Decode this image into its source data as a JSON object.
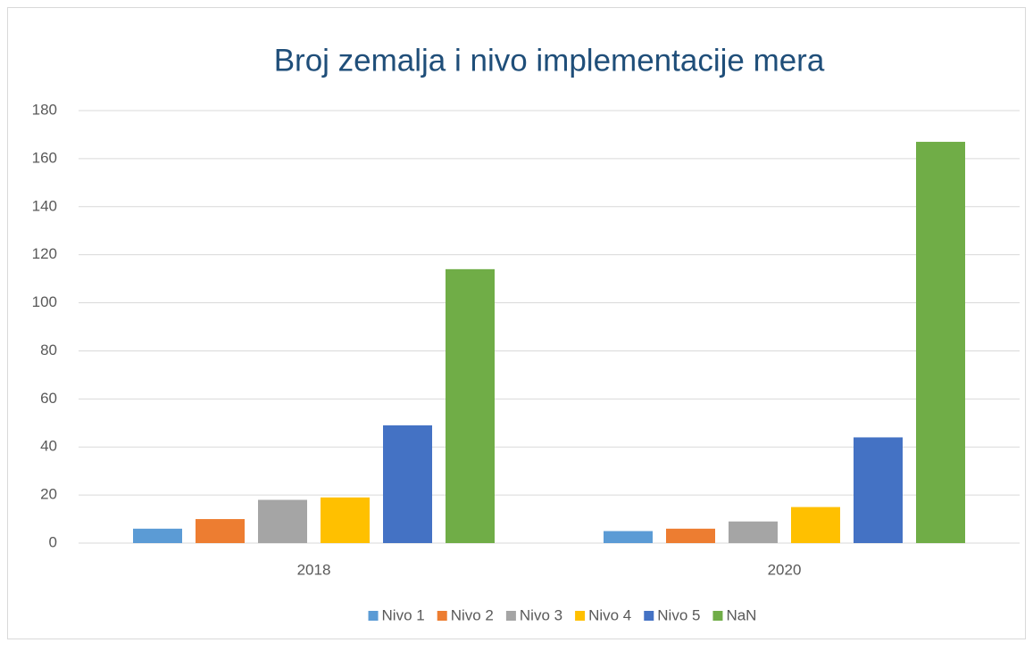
{
  "chart_data": {
    "type": "bar",
    "title": "Broj zemalja i nivo implementacije mera",
    "categories": [
      "2018",
      "2020"
    ],
    "series": [
      {
        "name": "Nivo 1",
        "color": "#5b9bd5",
        "values": [
          6,
          5
        ]
      },
      {
        "name": "Nivo 2",
        "color": "#ed7d31",
        "values": [
          10,
          6
        ]
      },
      {
        "name": "Nivo 3",
        "color": "#a5a5a5",
        "values": [
          18,
          9
        ]
      },
      {
        "name": "Nivo 4",
        "color": "#ffc000",
        "values": [
          19,
          15
        ]
      },
      {
        "name": "Nivo 5",
        "color": "#4472c4",
        "values": [
          49,
          44
        ]
      },
      {
        "name": "NaN",
        "color": "#70ad47",
        "values": [
          114,
          167
        ]
      }
    ],
    "ylim": [
      0,
      180
    ],
    "yticks": [
      0,
      20,
      40,
      60,
      80,
      100,
      120,
      140,
      160,
      180
    ],
    "grid": true,
    "legend": "bottom"
  }
}
